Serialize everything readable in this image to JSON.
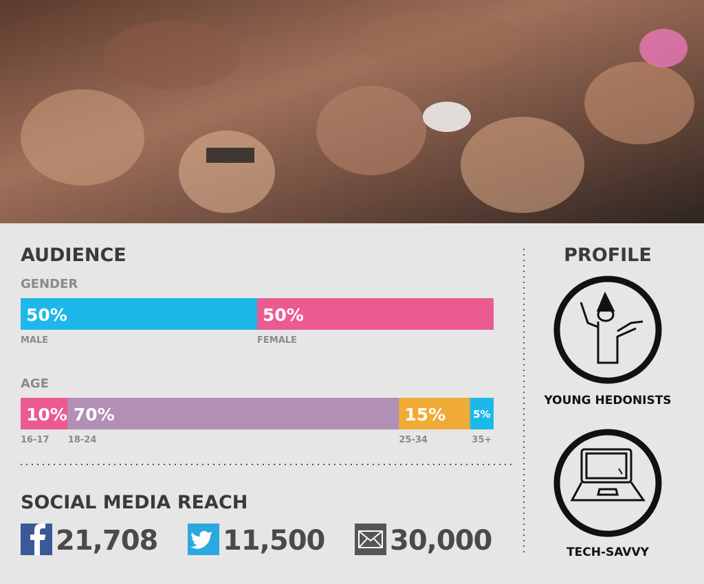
{
  "audience": {
    "title": "AUDIENCE",
    "gender": {
      "title": "GENDER",
      "segments": [
        {
          "label": "MALE",
          "value": 50,
          "value_label": "50%",
          "color": "#1db8ea"
        },
        {
          "label": "FEMALE",
          "value": 50,
          "value_label": "50%",
          "color": "#ec5a92"
        }
      ]
    },
    "age": {
      "title": "AGE",
      "segments": [
        {
          "label": "16-17",
          "value": 10,
          "value_label": "10%",
          "color": "#ec5a92"
        },
        {
          "label": "18-24",
          "value": 70,
          "value_label": "70%",
          "color": "#b28fb4"
        },
        {
          "label": "25-34",
          "value": 15,
          "value_label": "15%",
          "color": "#f0aa36"
        },
        {
          "label": "35+",
          "value": 5,
          "value_label": "5%",
          "color": "#1db8ea"
        }
      ]
    }
  },
  "social": {
    "title": "SOCIAL MEDIA REACH",
    "counts": [
      "21,708",
      "11,500",
      "30,000"
    ]
  },
  "profile": {
    "title": "PROFILE",
    "items": [
      "YOUNG HEDONISTS",
      "TECH-SAVVY"
    ]
  }
}
